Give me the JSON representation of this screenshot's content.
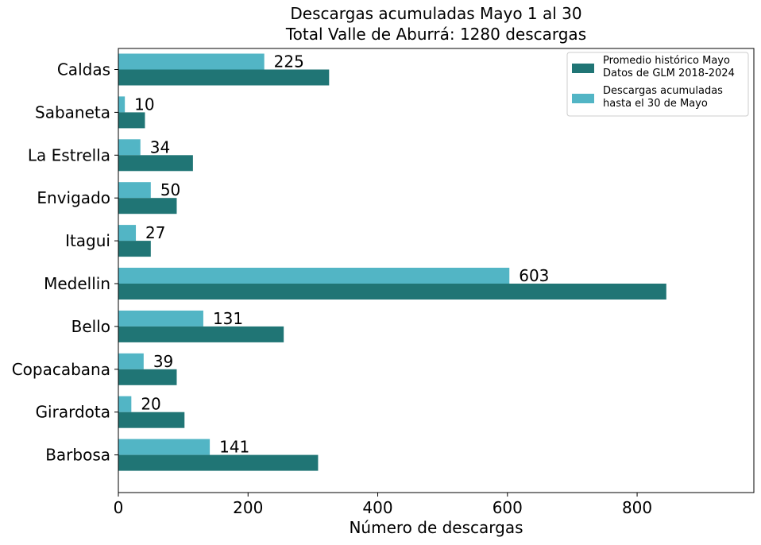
{
  "chart_data": {
    "type": "bar",
    "orientation": "horizontal",
    "title": [
      "Descargas acumuladas Mayo 1 al 30",
      "Total Valle de Aburrá: 1280 descargas"
    ],
    "xlabel": "Número de descargas",
    "ylabel": "",
    "xlim": [
      0,
      980
    ],
    "xticks": [
      0,
      200,
      400,
      600,
      800
    ],
    "grid": false,
    "legend_position": "top-right",
    "categories": [
      "Caldas",
      "Sabaneta",
      "La Estrella",
      "Envigado",
      "Itagui",
      "Medellin",
      "Bello",
      "Copacabana",
      "Girardota",
      "Barbosa"
    ],
    "series": [
      {
        "name": "Promedio histórico Mayo\nDatos de GLM 2018-2024",
        "color": "#207575",
        "values": [
          325,
          41,
          115,
          90,
          50,
          845,
          255,
          90,
          102,
          308
        ]
      },
      {
        "name": "Descargas acumuladas\nhasta el 30 de Mayo",
        "color": "#52b5c5",
        "values": [
          225,
          10,
          34,
          50,
          27,
          603,
          131,
          39,
          20,
          141
        ],
        "data_labels": [
          "225",
          "10",
          "34",
          "50",
          "27",
          "603",
          "131",
          "39",
          "20",
          "141"
        ]
      }
    ]
  }
}
